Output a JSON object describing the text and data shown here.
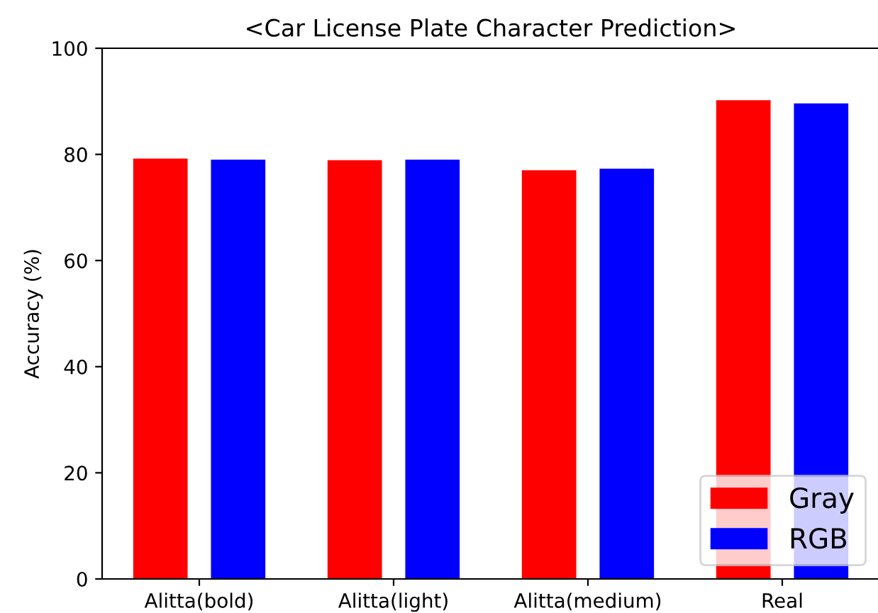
{
  "chart_data": {
    "type": "bar",
    "title": "<Car License Plate Character Prediction>",
    "ylabel": "Accuracy (%)",
    "categories": [
      "Alitta(bold)",
      "Alitta(light)",
      "Alitta(medium)",
      "Real"
    ],
    "series": [
      {
        "name": "Gray",
        "color": "#ff0000",
        "values": [
          79.2,
          78.9,
          77.0,
          90.2
        ]
      },
      {
        "name": "RGB",
        "color": "#0000ff",
        "values": [
          79.0,
          79.0,
          77.3,
          89.6
        ]
      }
    ],
    "ylim": [
      0,
      100
    ],
    "yticks": [
      0,
      20,
      40,
      60,
      80,
      100
    ],
    "grid": false,
    "legend": "bottom right"
  }
}
